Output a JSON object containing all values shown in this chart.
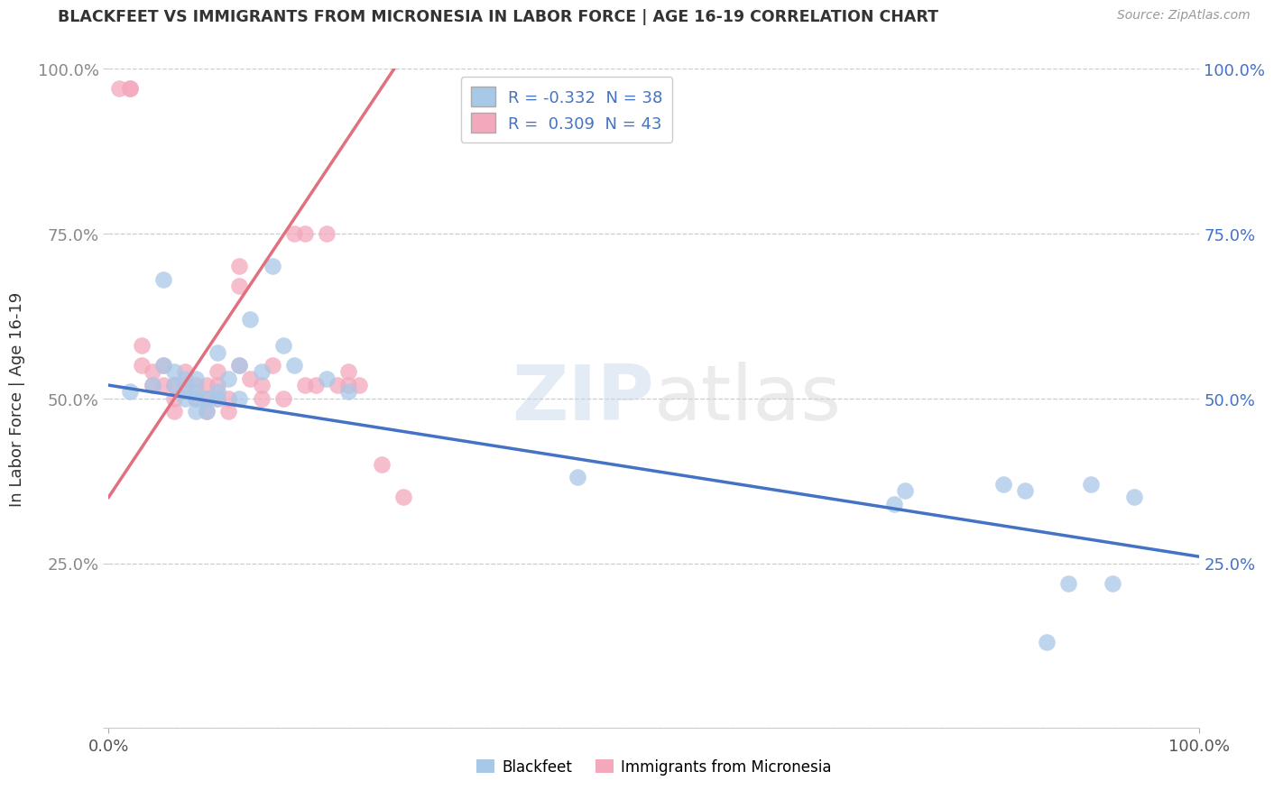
{
  "title": "BLACKFEET VS IMMIGRANTS FROM MICRONESIA IN LABOR FORCE | AGE 16-19 CORRELATION CHART",
  "source": "Source: ZipAtlas.com",
  "ylabel": "In Labor Force | Age 16-19",
  "xlim": [
    0.0,
    1.0
  ],
  "ylim": [
    0.0,
    1.0
  ],
  "xticks": [
    0.0,
    1.0
  ],
  "yticks": [
    0.0,
    0.25,
    0.5,
    0.75,
    1.0
  ],
  "xticklabels": [
    "0.0%",
    "100.0%"
  ],
  "yticklabels_left": [
    "",
    "25.0%",
    "50.0%",
    "75.0%",
    "100.0%"
  ],
  "yticklabels_right": [
    "",
    "25.0%",
    "50.0%",
    "75.0%",
    "100.0%"
  ],
  "blue_color": "#A8C8E8",
  "pink_color": "#F4A8BC",
  "blue_line_color": "#4472C4",
  "pink_line_color": "#E07080",
  "legend_R_blue": "-0.332",
  "legend_N_blue": "38",
  "legend_R_pink": "0.309",
  "legend_N_pink": "43",
  "watermark_zip": "ZIP",
  "watermark_atlas": "atlas",
  "blue_scatter_x": [
    0.02,
    0.04,
    0.05,
    0.05,
    0.06,
    0.06,
    0.07,
    0.07,
    0.07,
    0.08,
    0.08,
    0.08,
    0.08,
    0.09,
    0.09,
    0.1,
    0.1,
    0.1,
    0.11,
    0.12,
    0.12,
    0.13,
    0.14,
    0.15,
    0.16,
    0.17,
    0.2,
    0.22,
    0.43,
    0.72,
    0.73,
    0.82,
    0.84,
    0.86,
    0.88,
    0.9,
    0.92,
    0.94
  ],
  "blue_scatter_y": [
    0.51,
    0.52,
    0.55,
    0.68,
    0.52,
    0.54,
    0.5,
    0.51,
    0.53,
    0.48,
    0.5,
    0.51,
    0.53,
    0.48,
    0.5,
    0.5,
    0.51,
    0.57,
    0.53,
    0.5,
    0.55,
    0.62,
    0.54,
    0.7,
    0.58,
    0.55,
    0.53,
    0.51,
    0.38,
    0.34,
    0.36,
    0.37,
    0.36,
    0.13,
    0.22,
    0.37,
    0.22,
    0.35
  ],
  "pink_scatter_x": [
    0.01,
    0.02,
    0.02,
    0.03,
    0.03,
    0.04,
    0.04,
    0.05,
    0.05,
    0.06,
    0.06,
    0.06,
    0.07,
    0.07,
    0.08,
    0.08,
    0.09,
    0.09,
    0.09,
    0.1,
    0.1,
    0.1,
    0.11,
    0.11,
    0.12,
    0.12,
    0.12,
    0.13,
    0.14,
    0.14,
    0.15,
    0.16,
    0.17,
    0.18,
    0.18,
    0.19,
    0.2,
    0.21,
    0.22,
    0.22,
    0.23,
    0.25,
    0.27
  ],
  "pink_scatter_y": [
    0.97,
    0.97,
    0.97,
    0.55,
    0.58,
    0.52,
    0.54,
    0.52,
    0.55,
    0.48,
    0.5,
    0.52,
    0.52,
    0.54,
    0.5,
    0.52,
    0.48,
    0.5,
    0.52,
    0.5,
    0.52,
    0.54,
    0.48,
    0.5,
    0.55,
    0.67,
    0.7,
    0.53,
    0.5,
    0.52,
    0.55,
    0.5,
    0.75,
    0.52,
    0.75,
    0.52,
    0.75,
    0.52,
    0.52,
    0.54,
    0.52,
    0.4,
    0.35
  ],
  "blue_trendline": [
    0.0,
    0.52,
    1.0,
    0.26
  ],
  "pink_trendline": [
    0.0,
    0.35,
    0.27,
    1.02
  ]
}
